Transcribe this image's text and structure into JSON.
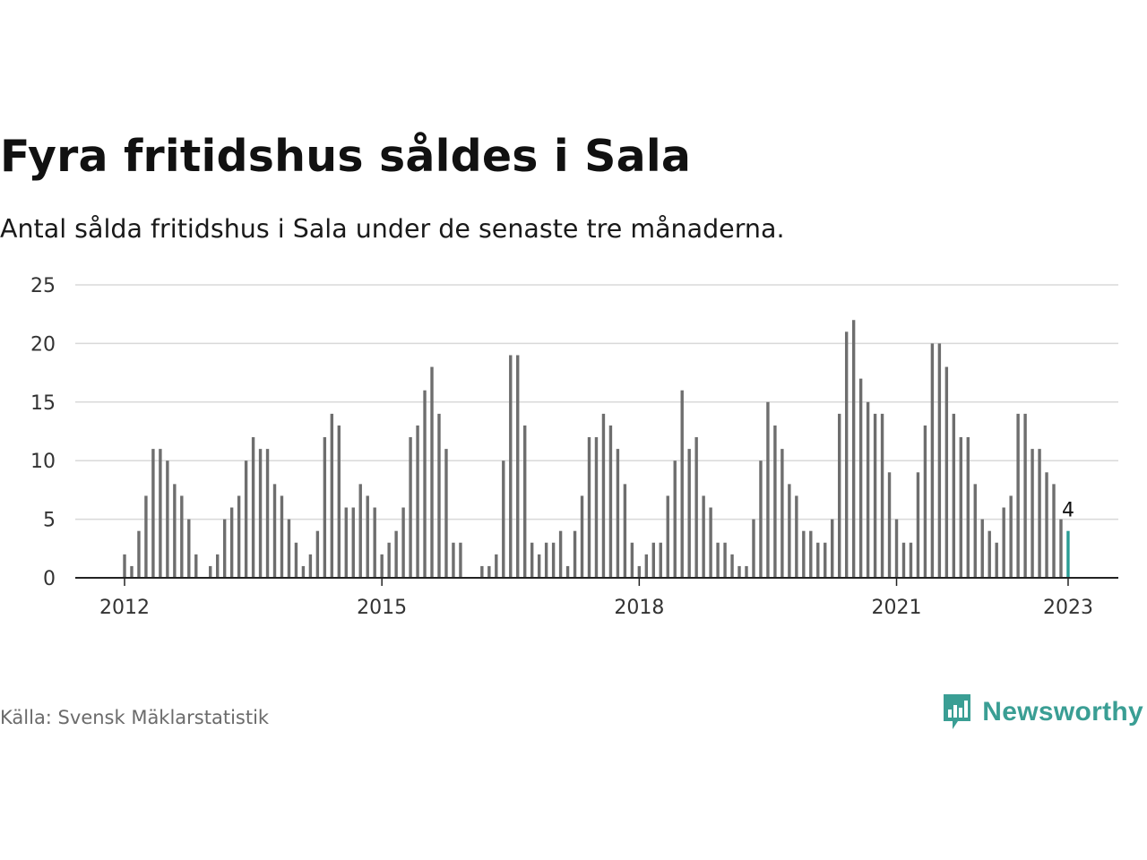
{
  "header": {
    "title": "Fyra fritidshus såldes i Sala",
    "subtitle": "Antal sålda fritidshus i Sala under de senaste tre månaderna."
  },
  "footer": {
    "source": "Källa: Svensk Mäklarstatistik",
    "brand": "Newsworthy",
    "brand_icon": "bar-chart-speech-bubble-icon"
  },
  "colors": {
    "bar": "#6e6e6e",
    "highlight": "#2a9d95",
    "grid": "#d9d9d9",
    "brand": "#3a9e94"
  },
  "chart_data": {
    "type": "bar",
    "ylim": [
      0,
      25
    ],
    "yticks": [
      0,
      5,
      10,
      15,
      20,
      25
    ],
    "xticks": [
      {
        "label": "2012",
        "date": "2012-01"
      },
      {
        "label": "2015",
        "date": "2015-01"
      },
      {
        "label": "2018",
        "date": "2018-01"
      },
      {
        "label": "2021",
        "date": "2021-01"
      },
      {
        "label": "2023",
        "date": "2023-01"
      }
    ],
    "grid": true,
    "start": "2012-01",
    "frequency": "monthly",
    "values": [
      2,
      1,
      4,
      7,
      11,
      11,
      10,
      8,
      7,
      5,
      2,
      0,
      1,
      2,
      5,
      6,
      7,
      10,
      12,
      11,
      11,
      8,
      7,
      5,
      3,
      1,
      2,
      4,
      12,
      14,
      13,
      6,
      6,
      8,
      7,
      6,
      2,
      3,
      4,
      6,
      12,
      13,
      16,
      18,
      14,
      11,
      3,
      3,
      0,
      0,
      1,
      1,
      2,
      10,
      19,
      19,
      13,
      3,
      2,
      3,
      3,
      4,
      1,
      4,
      7,
      12,
      12,
      14,
      13,
      11,
      8,
      3,
      1,
      2,
      3,
      3,
      7,
      10,
      16,
      11,
      12,
      7,
      6,
      3,
      3,
      2,
      1,
      1,
      5,
      10,
      15,
      13,
      11,
      8,
      7,
      4,
      4,
      3,
      3,
      5,
      14,
      21,
      22,
      17,
      15,
      14,
      14,
      9,
      5,
      3,
      3,
      9,
      13,
      20,
      20,
      18,
      14,
      12,
      12,
      8,
      5,
      4,
      3,
      6,
      7,
      14,
      14,
      11,
      11,
      9,
      8,
      5,
      4
    ],
    "highlight_label": "4"
  }
}
